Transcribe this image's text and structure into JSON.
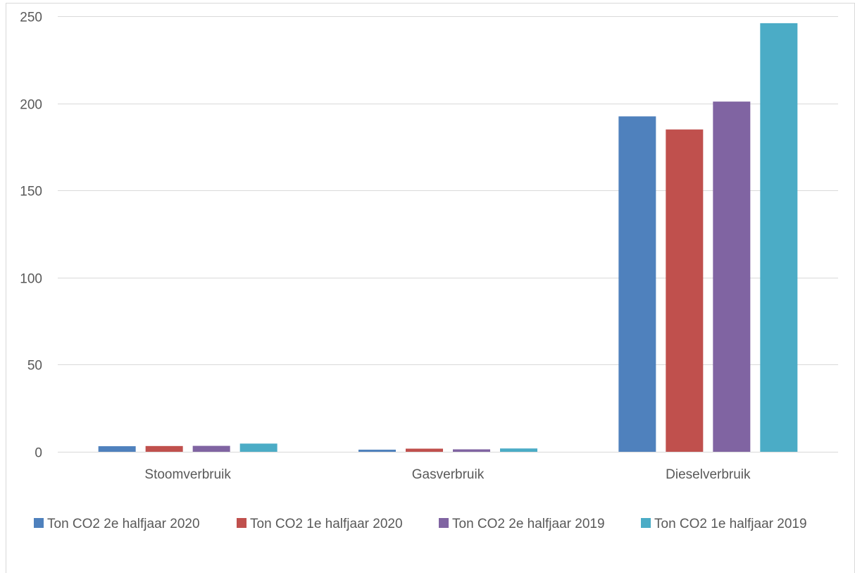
{
  "chart_data": {
    "type": "bar",
    "categories": [
      "Stoomverbruik",
      "Gasverbruik",
      "Dieselverbruik"
    ],
    "series": [
      {
        "name": "Ton CO2 2e halfjaar 2020",
        "color": "#4F81BD",
        "values": [
          3.2,
          1.2,
          192.5
        ]
      },
      {
        "name": "Ton CO2 1e halfjaar 2020",
        "color": "#C0504D",
        "values": [
          3.3,
          1.8,
          185.0
        ]
      },
      {
        "name": "Ton CO2 2e halfjaar 2019",
        "color": "#8064A2",
        "values": [
          3.4,
          1.4,
          201.0
        ]
      },
      {
        "name": "Ton CO2 1e halfjaar 2019",
        "color": "#4BACC6",
        "values": [
          4.7,
          1.9,
          246.0
        ]
      }
    ],
    "yticks": [
      "0",
      "50",
      "100",
      "150",
      "200",
      "250"
    ],
    "ylim": [
      0,
      250
    ],
    "grid": true,
    "legend": "bottom"
  }
}
